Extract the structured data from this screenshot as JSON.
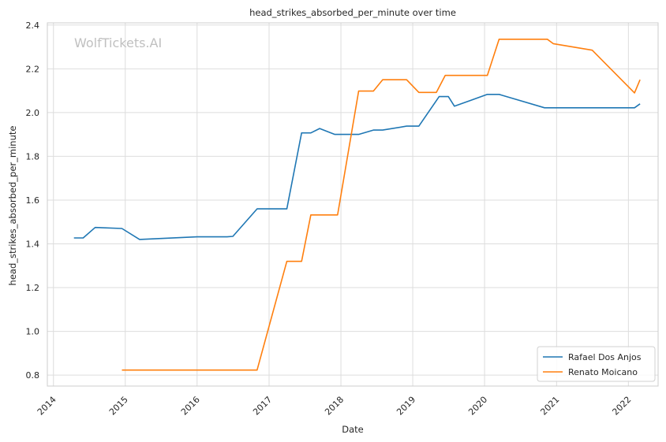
{
  "chart_data": {
    "type": "line",
    "title": "head_strikes_absorbed_per_minute over time",
    "xlabel": "Date",
    "ylabel": "head_strikes_absorbed_per_minute",
    "watermark": "WolfTickets.AI",
    "x_ticks": [
      "2014",
      "2015",
      "2016",
      "2017",
      "2018",
      "2019",
      "2020",
      "2021",
      "2022"
    ],
    "y_ticks": [
      "0.8",
      "1.0",
      "1.2",
      "1.4",
      "1.6",
      "1.8",
      "2.0",
      "2.2",
      "2.4"
    ],
    "xlim": [
      "2013-12-01",
      "2022-06-01"
    ],
    "ylim": [
      0.75,
      2.41
    ],
    "grid": true,
    "legend_position": "lower-right",
    "series": [
      {
        "name": "Rafael Dos Anjos",
        "color": "#1f77b4",
        "points": [
          [
            "2014-04-15",
            1.427
          ],
          [
            "2014-06-01",
            1.427
          ],
          [
            "2014-08-01",
            1.475
          ],
          [
            "2014-12-15",
            1.47
          ],
          [
            "2015-03-15",
            1.42
          ],
          [
            "2016-01-01",
            1.432
          ],
          [
            "2016-06-01",
            1.432
          ],
          [
            "2016-07-01",
            1.434
          ],
          [
            "2016-11-01",
            1.56
          ],
          [
            "2017-04-01",
            1.56
          ],
          [
            "2017-06-15",
            1.907
          ],
          [
            "2017-08-01",
            1.907
          ],
          [
            "2017-09-15",
            1.927
          ],
          [
            "2017-12-01",
            1.9
          ],
          [
            "2018-04-01",
            1.9
          ],
          [
            "2018-06-15",
            1.92
          ],
          [
            "2018-08-01",
            1.92
          ],
          [
            "2018-12-01",
            1.938
          ],
          [
            "2019-02-01",
            1.938
          ],
          [
            "2019-05-15",
            2.073
          ],
          [
            "2019-07-01",
            2.073
          ],
          [
            "2019-08-01",
            2.029
          ],
          [
            "2020-01-15",
            2.083
          ],
          [
            "2020-03-15",
            2.083
          ],
          [
            "2020-11-01",
            2.022
          ],
          [
            "2021-07-01",
            2.022
          ],
          [
            "2022-02-01",
            2.022
          ],
          [
            "2022-03-01",
            2.04
          ]
        ]
      },
      {
        "name": "Renato Moicano",
        "color": "#ff7f0e",
        "points": [
          [
            "2014-12-15",
            0.823
          ],
          [
            "2016-01-01",
            0.823
          ],
          [
            "2016-11-01",
            0.823
          ],
          [
            "2017-04-01",
            1.32
          ],
          [
            "2017-06-15",
            1.32
          ],
          [
            "2017-08-01",
            1.532
          ],
          [
            "2017-12-15",
            1.532
          ],
          [
            "2018-04-01",
            2.098
          ],
          [
            "2018-06-15",
            2.098
          ],
          [
            "2018-08-01",
            2.15
          ],
          [
            "2018-12-01",
            2.15
          ],
          [
            "2019-02-01",
            2.092
          ],
          [
            "2019-05-01",
            2.092
          ],
          [
            "2019-06-15",
            2.17
          ],
          [
            "2020-01-15",
            2.17
          ],
          [
            "2020-03-15",
            2.335
          ],
          [
            "2020-11-15",
            2.335
          ],
          [
            "2020-12-15",
            2.315
          ],
          [
            "2021-07-01",
            2.285
          ],
          [
            "2022-02-01",
            2.09
          ],
          [
            "2022-03-01",
            2.15
          ]
        ]
      }
    ]
  }
}
